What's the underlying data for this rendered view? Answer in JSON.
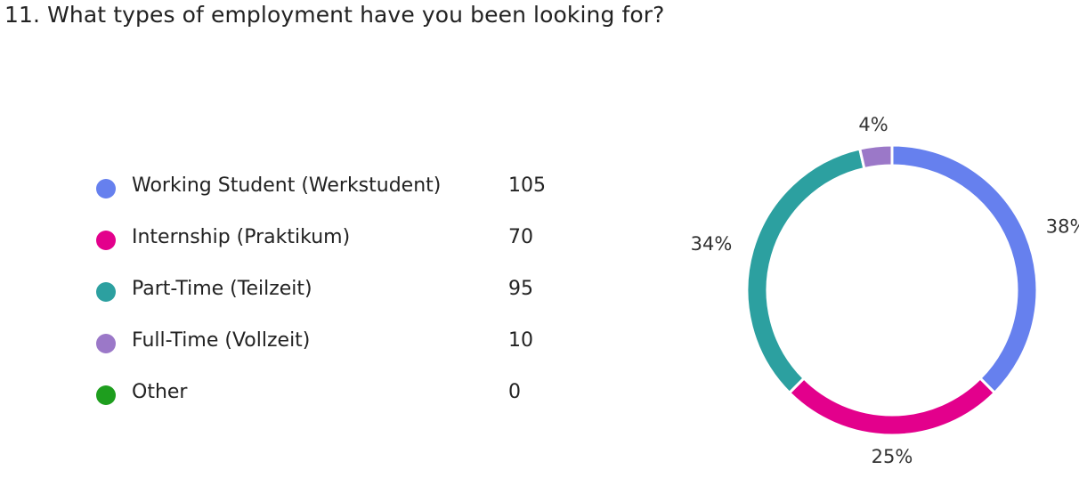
{
  "question": {
    "title": "11. What types of employment have you been looking for?"
  },
  "chart_data": {
    "type": "pie",
    "style": "donut",
    "title": "11. What types of employment have you been looking for?",
    "legend_position": "left",
    "categories": [
      "Working Student (Werkstudent)",
      "Internship (Praktikum)",
      "Part-Time (Teilzeit)",
      "Full-Time (Vollzeit)",
      "Other"
    ],
    "values": [
      105,
      70,
      95,
      10,
      0
    ],
    "percent_labels": [
      "38%",
      "25%",
      "34%",
      "4%",
      ""
    ],
    "colors": [
      "#6680ee",
      "#e3008c",
      "#2ca0a0",
      "#9b78c8",
      "#1e9e1e"
    ]
  }
}
